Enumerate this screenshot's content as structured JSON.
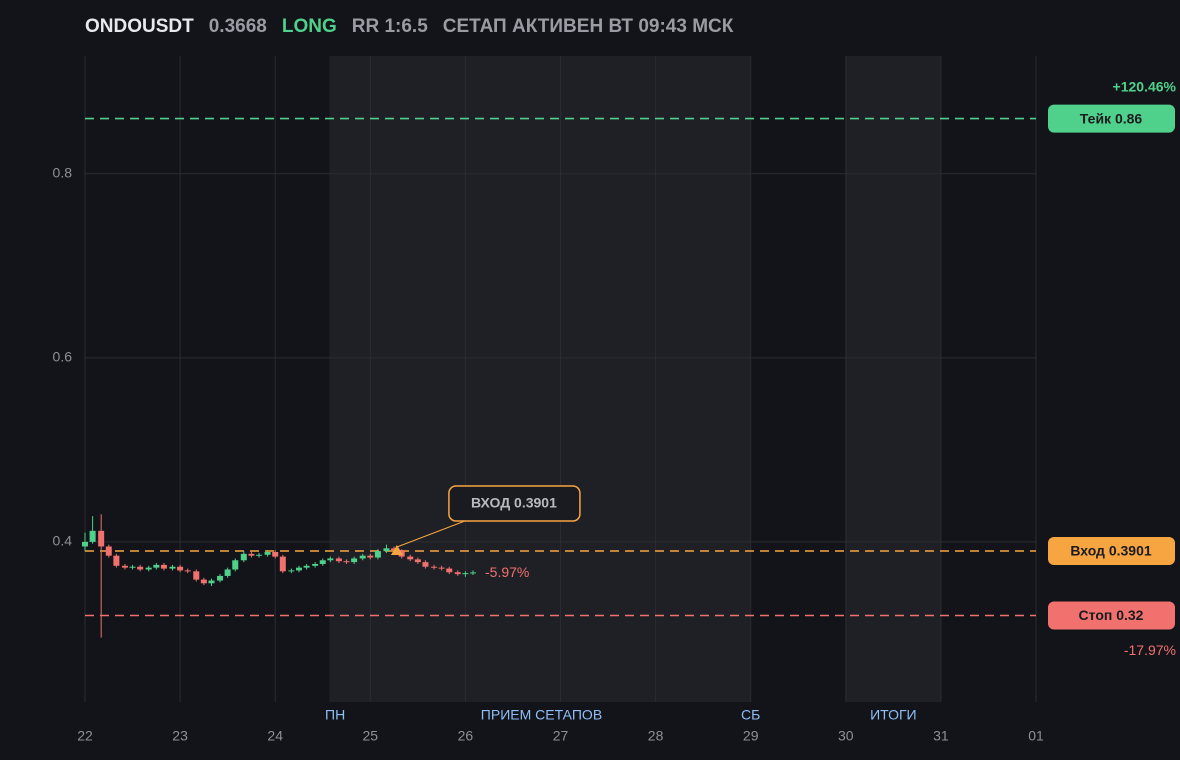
{
  "header": {
    "symbol": "ONDOUSDT",
    "price": 0.3668,
    "side": "LONG",
    "rr": "RR 1:6.5",
    "status": "СЕТАП АКТИВЕН ВТ 09:43 МСК"
  },
  "chart_data": {
    "type": "candlestick",
    "x": [
      22,
      22.08,
      22.17,
      22.25,
      22.33,
      22.42,
      22.5,
      22.58,
      22.67,
      22.75,
      22.83,
      22.92,
      23,
      23.08,
      23.17,
      23.25,
      23.33,
      23.42,
      23.5,
      23.58,
      23.67,
      23.75,
      23.83,
      23.92,
      24,
      24.08,
      24.17,
      24.25,
      24.33,
      24.42,
      24.5,
      24.58,
      24.67,
      24.75,
      24.83,
      24.92,
      25,
      25.08,
      25.17,
      25.25,
      25.33,
      25.42,
      25.5,
      25.58,
      25.67,
      25.75,
      25.83,
      25.92,
      26,
      26.08
    ],
    "open": [
      0.395,
      0.4,
      0.412,
      0.395,
      0.385,
      0.374,
      0.372,
      0.373,
      0.37,
      0.372,
      0.375,
      0.371,
      0.373,
      0.369,
      0.368,
      0.359,
      0.355,
      0.358,
      0.363,
      0.37,
      0.38,
      0.387,
      0.385,
      0.386,
      0.389,
      0.384,
      0.368,
      0.369,
      0.372,
      0.374,
      0.376,
      0.38,
      0.382,
      0.379,
      0.378,
      0.382,
      0.385,
      0.383,
      0.39,
      0.393,
      0.391,
      0.384,
      0.381,
      0.378,
      0.373,
      0.372,
      0.371,
      0.367,
      0.365,
      0.366
    ],
    "high": [
      0.41,
      0.428,
      0.43,
      0.397,
      0.387,
      0.376,
      0.375,
      0.375,
      0.374,
      0.377,
      0.377,
      0.375,
      0.375,
      0.371,
      0.37,
      0.361,
      0.36,
      0.365,
      0.372,
      0.382,
      0.39,
      0.39,
      0.388,
      0.391,
      0.391,
      0.386,
      0.371,
      0.374,
      0.376,
      0.378,
      0.382,
      0.384,
      0.384,
      0.381,
      0.384,
      0.387,
      0.387,
      0.392,
      0.397,
      0.395,
      0.392,
      0.386,
      0.383,
      0.38,
      0.375,
      0.374,
      0.373,
      0.369,
      0.368,
      0.369
    ],
    "low": [
      0.39,
      0.398,
      0.296,
      0.383,
      0.372,
      0.37,
      0.37,
      0.368,
      0.368,
      0.37,
      0.369,
      0.369,
      0.367,
      0.366,
      0.357,
      0.353,
      0.352,
      0.356,
      0.361,
      0.368,
      0.378,
      0.383,
      0.383,
      0.384,
      0.382,
      0.366,
      0.366,
      0.367,
      0.37,
      0.372,
      0.374,
      0.378,
      0.377,
      0.376,
      0.376,
      0.38,
      0.381,
      0.381,
      0.388,
      0.389,
      0.382,
      0.379,
      0.376,
      0.371,
      0.37,
      0.369,
      0.365,
      0.363,
      0.362,
      0.364
    ],
    "close": [
      0.4,
      0.412,
      0.395,
      0.385,
      0.374,
      0.372,
      0.373,
      0.37,
      0.372,
      0.375,
      0.371,
      0.373,
      0.369,
      0.368,
      0.359,
      0.355,
      0.358,
      0.363,
      0.37,
      0.38,
      0.387,
      0.385,
      0.386,
      0.389,
      0.384,
      0.368,
      0.369,
      0.372,
      0.374,
      0.376,
      0.38,
      0.382,
      0.379,
      0.378,
      0.382,
      0.385,
      0.383,
      0.39,
      0.393,
      0.391,
      0.384,
      0.381,
      0.378,
      0.373,
      0.372,
      0.371,
      0.367,
      0.365,
      0.366,
      0.3668
    ],
    "up_color": "#4fd18b",
    "down_color": "#f0716e",
    "xlim": [
      22,
      32
    ],
    "xticks": [
      22,
      23,
      24,
      25,
      26,
      27,
      28,
      29,
      30,
      31,
      {
        "value": 32,
        "label": "01"
      }
    ],
    "ylim": [
      0.226,
      0.928
    ],
    "yticks": [
      0.4,
      0.6,
      0.8
    ],
    "grid": true,
    "shaded": [
      [
        24.57,
        29
      ],
      [
        30,
        31
      ]
    ],
    "session_labels": [
      {
        "x": 24.63,
        "label": "ПН"
      },
      {
        "x": 26.8,
        "label": "ПРИЕМ СЕТАПОВ"
      },
      {
        "x": 29,
        "label": "СБ"
      },
      {
        "x": 30.5,
        "label": "ИТОГИ"
      }
    ],
    "levels": [
      {
        "label": "Тейк 0.86",
        "value": 0.86,
        "color": "#4fd18b",
        "change": {
          "value": 120.46,
          "label": "+120.46%"
        }
      },
      {
        "label": "Вход 0.3901",
        "value": 0.3901,
        "color": "#f7a541"
      },
      {
        "label": "Стоп 0.32",
        "value": 0.32,
        "color": "#f0716e",
        "change": {
          "value": -17.97,
          "label": "-17.97%"
        }
      }
    ],
    "entry": {
      "x": 25.28,
      "value": 0.3901,
      "label": "ВХОД 0.3901",
      "color": "#f7a541"
    },
    "current_change": {
      "value": -5.97,
      "label": "-5.97%"
    }
  }
}
